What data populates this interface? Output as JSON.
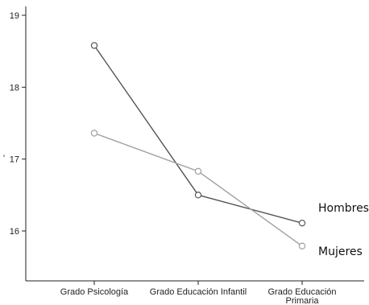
{
  "chart_data": {
    "type": "line",
    "title": "",
    "xlabel": "",
    "ylabel": "'",
    "categories": [
      "Grado Psicología",
      "Grado Educación Infantil",
      "Grado Educación\nPrimaria"
    ],
    "ylim": [
      15.4,
      19.1
    ],
    "yticks": [
      16,
      17,
      18,
      19
    ],
    "grid": false,
    "legend": "right (inline labels at line ends)",
    "series": [
      {
        "name": "Hombres",
        "values": [
          18.58,
          16.5,
          16.11
        ],
        "color": "#555555"
      },
      {
        "name": "Mujeres",
        "values": [
          17.36,
          16.83,
          15.79
        ],
        "color": "#a0a0a0"
      }
    ]
  }
}
